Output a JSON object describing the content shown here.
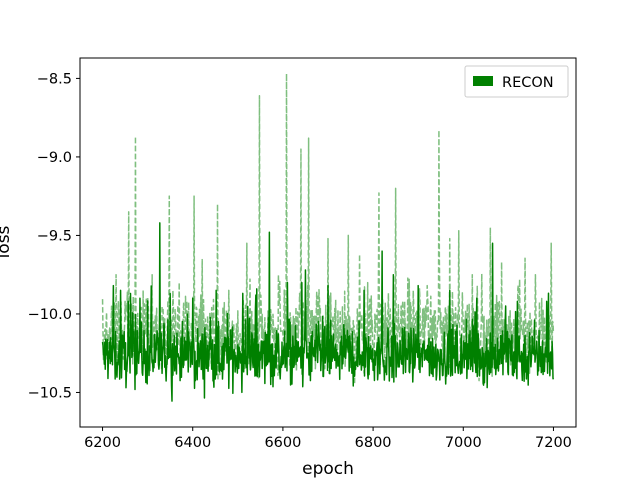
{
  "chart_data": {
    "type": "line",
    "title": "",
    "xlabel": "epoch",
    "ylabel": "loss",
    "xlim": [
      6150,
      7250
    ],
    "ylim": [
      -10.72,
      -8.37
    ],
    "xticks": [
      6200,
      6400,
      6600,
      6800,
      7000,
      7200
    ],
    "yticks": [
      -10.5,
      -10.0,
      -9.5,
      -9.0,
      -8.5
    ],
    "xtick_labels": [
      "6200",
      "6400",
      "6600",
      "6800",
      "7000",
      "7200"
    ],
    "ytick_labels": [
      "−10.5",
      "−10.0",
      "−9.5",
      "−9.0",
      "−8.5"
    ],
    "grid": false,
    "legend_position": "top-right",
    "series": [
      {
        "name": "RECON",
        "style": "solid",
        "color": "#008000",
        "x_range": [
          6200,
          7200
        ],
        "baseline": -10.27,
        "noise": 0.09,
        "spikes": [
          [
            6224,
            -9.82
          ],
          [
            6240,
            -9.85
          ],
          [
            6262,
            -9.87
          ],
          [
            6283,
            -9.9
          ],
          [
            6327,
            -9.42
          ],
          [
            6350,
            -9.87
          ],
          [
            6400,
            -9.9
          ],
          [
            6452,
            -9.85
          ],
          [
            6540,
            -9.88
          ],
          [
            6570,
            -9.48
          ],
          [
            6610,
            -9.8
          ],
          [
            6650,
            -9.72
          ],
          [
            6700,
            -9.82
          ],
          [
            6780,
            -9.85
          ],
          [
            6820,
            -9.6
          ],
          [
            6845,
            -9.75
          ],
          [
            6900,
            -9.82
          ],
          [
            6970,
            -9.85
          ],
          [
            7030,
            -9.9
          ],
          [
            7065,
            -9.55
          ],
          [
            7120,
            -9.92
          ],
          [
            7185,
            -9.92
          ]
        ]
      },
      {
        "name": "",
        "style": "dashed",
        "color": "#7fbf7f",
        "x_range": [
          6200,
          7200
        ],
        "baseline": -10.12,
        "noise": 0.11,
        "spikes": [
          [
            6230,
            -9.75
          ],
          [
            6258,
            -9.35
          ],
          [
            6273,
            -8.87
          ],
          [
            6290,
            -9.85
          ],
          [
            6310,
            -9.75
          ],
          [
            6348,
            -9.25
          ],
          [
            6370,
            -9.8
          ],
          [
            6403,
            -9.25
          ],
          [
            6455,
            -9.3
          ],
          [
            6480,
            -9.85
          ],
          [
            6520,
            -9.55
          ],
          [
            6548,
            -8.61
          ],
          [
            6590,
            -9.75
          ],
          [
            6608,
            -8.47
          ],
          [
            6640,
            -8.95
          ],
          [
            6657,
            -8.88
          ],
          [
            6700,
            -9.52
          ],
          [
            6745,
            -9.5
          ],
          [
            6770,
            -9.62
          ],
          [
            6813,
            -9.23
          ],
          [
            6850,
            -9.2
          ],
          [
            6880,
            -9.78
          ],
          [
            6920,
            -9.82
          ],
          [
            6946,
            -8.83
          ],
          [
            6970,
            -9.52
          ],
          [
            6990,
            -9.47
          ],
          [
            7020,
            -9.75
          ],
          [
            7060,
            -9.45
          ],
          [
            7085,
            -9.67
          ],
          [
            7125,
            -9.78
          ],
          [
            7160,
            -9.75
          ],
          [
            7195,
            -9.55
          ]
        ]
      }
    ]
  }
}
